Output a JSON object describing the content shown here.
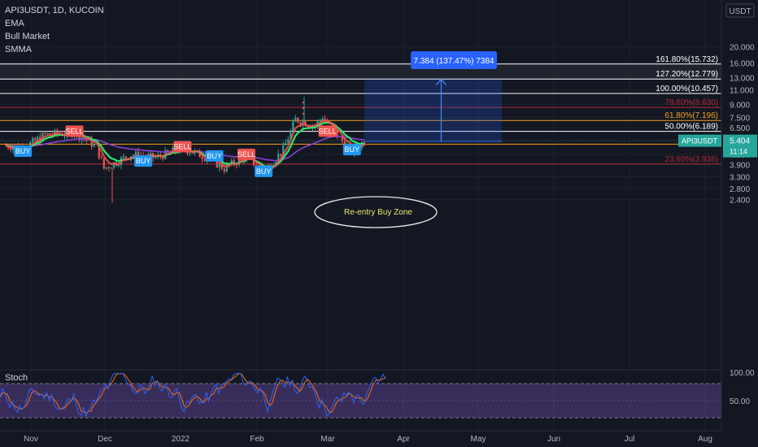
{
  "header": {
    "symbol": "API3USDT, 1D, KUCOIN",
    "indicators": [
      "EMA",
      "Bull Market",
      "SMMA"
    ]
  },
  "currency_label": "USDT",
  "price_tag": {
    "symbol": "API3USDT",
    "price": "5.404",
    "countdown": "11:14"
  },
  "measure_label": "7.384 (137.47%) 7384",
  "zone_label": "Re-entry Buy Zone",
  "stoch_title": "Stoch",
  "colors": {
    "bg": "#131722",
    "up": "#26a69a",
    "down": "#ef5350",
    "ema_fast": "#ef5350",
    "ema_slow": "#8b3fd6",
    "bull": "#2ee86b",
    "stoch_k": "#2962ff",
    "stoch_d": "#ff6d00",
    "stoch_band": "#7e57c2"
  },
  "chart_data": [
    {
      "type": "candlestick",
      "title": "API3USDT, 1D, KUCOIN",
      "y_scale": "log",
      "y_ticks": [
        "20.000",
        "16.000",
        "13.000",
        "11.000",
        "9.000",
        "7.500",
        "6.500",
        "5.500",
        "4.500",
        "3.900",
        "3.300",
        "2.800",
        "2.400"
      ],
      "x_ticks": [
        "Nov",
        "Dec",
        "2022",
        "Feb",
        "Mar",
        "Apr",
        "May",
        "Jun",
        "Jul",
        "Aug"
      ],
      "fib_levels": [
        {
          "label": "161.80%(15.732)",
          "value": 15.732,
          "color": "#ffffff"
        },
        {
          "label": "127.20%(12.779)",
          "value": 12.779,
          "color": "#ffffff"
        },
        {
          "label": "100.00%(10.457)",
          "value": 10.457,
          "color": "#ffffff"
        },
        {
          "label": "78.60%(8.630)",
          "value": 8.63,
          "color": "#b22833"
        },
        {
          "label": "61.80%(7.196)",
          "value": 7.196,
          "color": "#f7a21b"
        },
        {
          "label": "50.00%(6.189)",
          "value": 6.189,
          "color": "#ffffff"
        },
        {
          "label": "38.2",
          "value": 5.18,
          "color": "#f7a21b"
        },
        {
          "label": "23.60%(3.936)",
          "value": 3.936,
          "color": "#b22833"
        }
      ],
      "signals": [
        {
          "label": "SELL",
          "date": "Nov 22",
          "price": 6.2
        },
        {
          "label": "BUY",
          "date": "Nov 01",
          "price": 4.7
        },
        {
          "label": "BUY",
          "date": "Dec 20",
          "price": 4.1
        },
        {
          "label": "SELL",
          "date": "Jan 05",
          "price": 5.0
        },
        {
          "label": "BUY",
          "date": "Jan 18",
          "price": 4.4
        },
        {
          "label": "SELL",
          "date": "Jan 31",
          "price": 4.5
        },
        {
          "label": "BUY",
          "date": "Feb 07",
          "price": 3.55
        },
        {
          "label": "SELL",
          "date": "Mar 05",
          "price": 6.2
        },
        {
          "label": "BUY",
          "date": "Mar 15",
          "price": 4.8
        }
      ],
      "measure": {
        "from": 5.37,
        "to": 12.75,
        "start": "Mar 20",
        "end": "May 15"
      },
      "series": [
        {
          "date": "Oct 25",
          "close": 5.1
        },
        {
          "date": "Nov 01",
          "close": 4.9
        },
        {
          "date": "Nov 10",
          "close": 5.9
        },
        {
          "date": "Nov 22",
          "close": 6.1
        },
        {
          "date": "Dec 01",
          "close": 5.0
        },
        {
          "date": "Dec 04",
          "close": 3.7
        },
        {
          "date": "Dec 15",
          "close": 4.5
        },
        {
          "date": "Dec 25",
          "close": 4.3
        },
        {
          "date": "Jan 05",
          "close": 4.9
        },
        {
          "date": "Jan 15",
          "close": 4.3
        },
        {
          "date": "Jan 22",
          "close": 3.7
        },
        {
          "date": "Jan 31",
          "close": 4.4
        },
        {
          "date": "Feb 07",
          "close": 3.5
        },
        {
          "date": "Feb 15",
          "close": 4.8
        },
        {
          "date": "Feb 20",
          "close": 7.3
        },
        {
          "date": "Feb 28",
          "close": 6.7
        },
        {
          "date": "Mar 03",
          "close": 7.6
        },
        {
          "date": "Mar 10",
          "close": 5.6
        },
        {
          "date": "Mar 15",
          "close": 4.7
        },
        {
          "date": "Mar 20",
          "close": 5.4
        }
      ]
    },
    {
      "type": "line",
      "title": "Stoch",
      "y_ticks": [
        "100.00",
        "50.00"
      ],
      "ylim": [
        0,
        100
      ],
      "band": [
        20,
        80
      ]
    }
  ]
}
